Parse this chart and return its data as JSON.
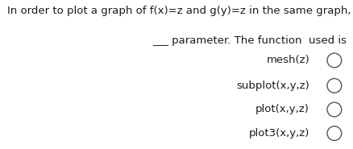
{
  "background_color": "#ffffff",
  "question_line1": "In order to plot a graph of f(x)=z and g(y)=z in the same graph, with t as a",
  "question_line2": "___ parameter. The function  used is",
  "options": [
    "mesh(z)",
    "subplot(x,y,z)",
    "plot(x,y,z)",
    "plot3(x,y,z)"
  ],
  "text_color": "#1a1a1a",
  "font_size": 9.5,
  "option_font_size": 9.5,
  "circle_color": "#555555",
  "fig_width": 4.39,
  "fig_height": 1.85,
  "dpi": 100
}
